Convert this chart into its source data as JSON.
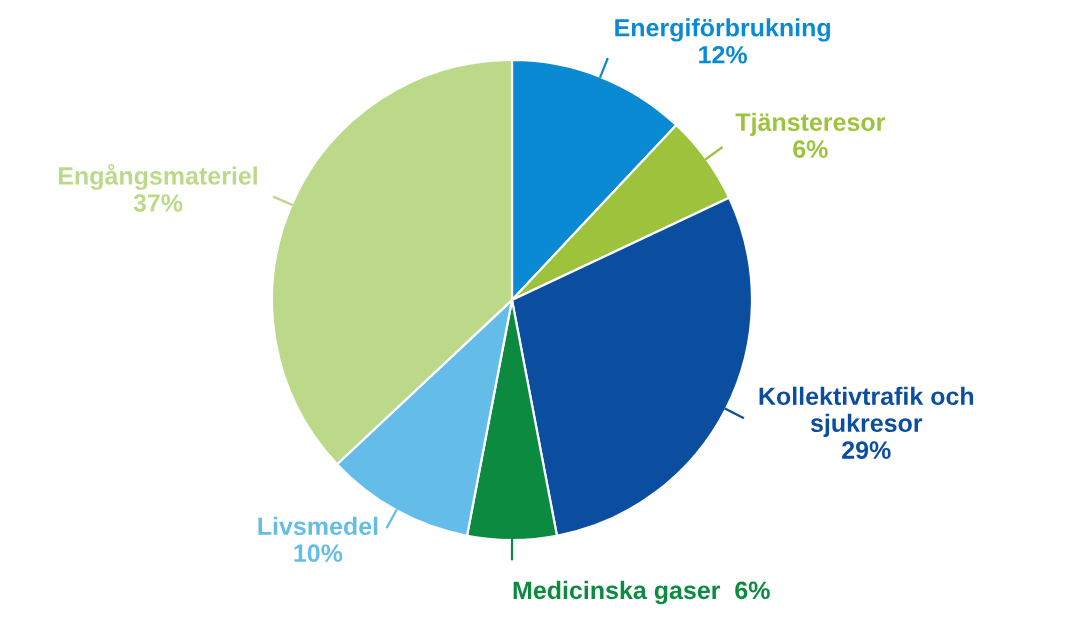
{
  "chart_data": {
    "type": "pie",
    "categories": [
      "Energiförbrukning",
      "Tjänsteresor",
      "Kollektivtrafik och\nsjukresor",
      "Medicinska gaser",
      "Livsmedel",
      "Engångsmateriel"
    ],
    "values": [
      12,
      6,
      29,
      6,
      10,
      37
    ],
    "value_labels": [
      "12%",
      "6%",
      "29%",
      "6%",
      "10%",
      "37%"
    ],
    "colors": [
      "#0a8ad2",
      "#9dc23b",
      "#0b4d9f",
      "#0c8a3f",
      "#64bce8",
      "#bcd98a"
    ],
    "legend": false
  }
}
